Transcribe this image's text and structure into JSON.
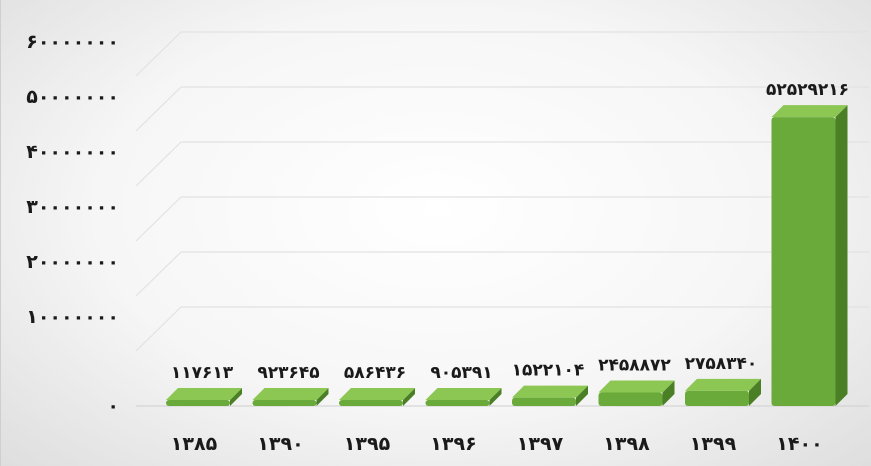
{
  "chart_data": {
    "type": "bar",
    "title": "",
    "xlabel": "",
    "ylabel": "",
    "categories": [
      "۱۳۸۵",
      "۱۳۹۰",
      "۱۳۹۵",
      "۱۳۹۶",
      "۱۳۹۷",
      "۱۳۹۸",
      "۱۳۹۹",
      "۱۴۰۰"
    ],
    "values": [
      117613,
      923645,
      586436,
      905391,
      1522104,
      2458872,
      2758340,
      52529216
    ],
    "data_labels": [
      "۱۱۷۶۱۳",
      "۹۲۳۶۴۵",
      "۵۸۶۴۳۶",
      "۹۰۵۳۹۱",
      "۱۵۲۲۱۰۴",
      "۲۴۵۸۸۷۲",
      "۲۷۵۸۳۴۰",
      "۵۲۵۲۹۲۱۶"
    ],
    "y_ticks": [
      {
        "value": 0,
        "label": "۰"
      },
      {
        "value": 10000000,
        "label": "۱۰۰۰۰۰۰۰"
      },
      {
        "value": 20000000,
        "label": "۲۰۰۰۰۰۰۰"
      },
      {
        "value": 30000000,
        "label": "۳۰۰۰۰۰۰۰"
      },
      {
        "value": 40000000,
        "label": "۴۰۰۰۰۰۰۰"
      },
      {
        "value": 50000000,
        "label": "۵۰۰۰۰۰۰۰"
      },
      {
        "value": 60000000,
        "label": "۶۰۰۰۰۰۰۰"
      }
    ],
    "ylim": [
      0,
      60000000
    ],
    "grid": true,
    "legend": "none",
    "style": "3d-bar",
    "bar_color": "#6aaa3a",
    "bar_top_color": "#8cc653",
    "bar_side_color": "#4a7f26"
  }
}
